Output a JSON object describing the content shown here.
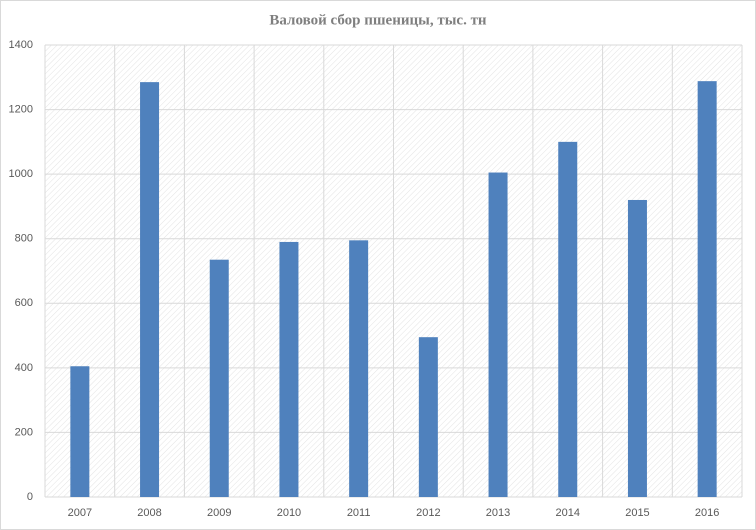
{
  "chart_data": {
    "type": "bar",
    "title": "Валовой сбор пшеницы, тыс. тн",
    "categories": [
      "2007",
      "2008",
      "2009",
      "2010",
      "2011",
      "2012",
      "2013",
      "2014",
      "2015",
      "2016"
    ],
    "values": [
      405,
      1285,
      735,
      790,
      795,
      495,
      1005,
      1100,
      920,
      1288
    ],
    "color": "#4f81bd",
    "ylim": [
      0,
      1400
    ],
    "yticks": [
      0,
      200,
      400,
      600,
      800,
      1000,
      1200,
      1400
    ],
    "grid": true
  }
}
